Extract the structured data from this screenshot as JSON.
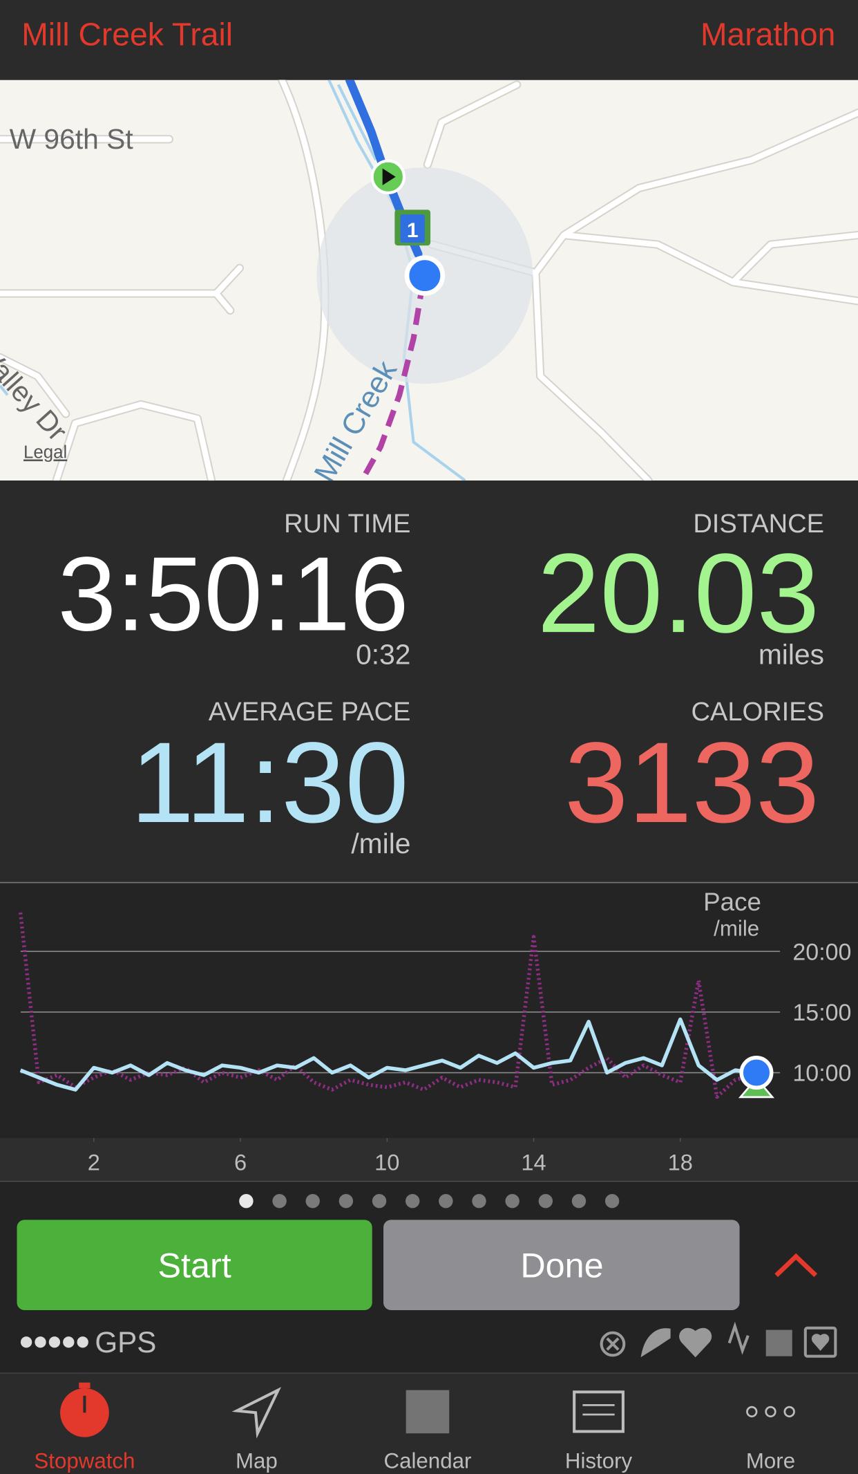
{
  "header": {
    "route": "Mill Creek Trail",
    "workout": "Marathon"
  },
  "map": {
    "labels": [
      "W 96th St",
      "Valley Dr",
      "Mill Creek"
    ],
    "legal": "Legal",
    "mile_marker": "1"
  },
  "stats": {
    "run_time": {
      "label": "RUN TIME",
      "value": "3:50:16",
      "sub": "0:32"
    },
    "distance": {
      "label": "DISTANCE",
      "value": 20.03,
      "unit": "miles"
    },
    "average_pace": {
      "label": "AVERAGE PACE",
      "value": "11:30",
      "unit": "/mile"
    },
    "calories": {
      "label": "CALORIES",
      "value": 3133
    }
  },
  "chart_data": {
    "type": "line",
    "title": "Pace",
    "y_unit": "/mile",
    "x": [
      0,
      0.5,
      1,
      1.5,
      2,
      2.5,
      3,
      3.5,
      4,
      4.5,
      5,
      5.5,
      6,
      6.5,
      7,
      7.5,
      8,
      8.5,
      9,
      9.5,
      10,
      10.5,
      11,
      11.5,
      12,
      12.5,
      13,
      13.5,
      14,
      14.5,
      15,
      15.5,
      16,
      16.5,
      17,
      17.5,
      18,
      18.5,
      19,
      19.5,
      20
    ],
    "series": [
      {
        "color": "#b5e3f6",
        "values": [
          10.2,
          9.6,
          9.0,
          8.6,
          10.4,
          10.0,
          10.6,
          9.8,
          10.8,
          10.2,
          9.8,
          10.6,
          10.4,
          10.0,
          10.6,
          10.4,
          11.2,
          10.0,
          10.6,
          9.6,
          10.4,
          10.2,
          10.6,
          11.0,
          10.4,
          11.4,
          10.8,
          11.6,
          10.4,
          10.8,
          11.0,
          14.2,
          10.0,
          10.8,
          11.2,
          10.6,
          14.4,
          10.6,
          9.4,
          10.2,
          10.0
        ]
      },
      {
        "color": "#9b2f8f",
        "values": [
          23.2,
          9.2,
          9.8,
          8.8,
          9.6,
          10.2,
          9.4,
          10.0,
          9.8,
          10.4,
          9.2,
          10.0,
          9.6,
          10.2,
          9.4,
          10.6,
          9.2,
          8.6,
          9.4,
          9.0,
          8.8,
          9.2,
          8.6,
          9.6,
          8.8,
          9.4,
          9.2,
          8.8,
          21.2,
          9.0,
          9.4,
          10.4,
          11.2,
          9.6,
          10.6,
          9.8,
          9.2,
          17.6,
          8.0,
          9.4,
          9.8
        ]
      }
    ],
    "xlim": [
      -0.56,
      20.72
    ],
    "ylim": [
      4.61,
      25.55
    ],
    "xticks": [
      2,
      6,
      10,
      14,
      18
    ],
    "yticks": [
      {
        "value": 10,
        "label": "10:00"
      },
      {
        "value": 15,
        "label": "15:00"
      },
      {
        "value": 20,
        "label": "20:00"
      }
    ],
    "grid": true
  },
  "pager": {
    "pages": 12,
    "current": 0
  },
  "controls": {
    "start": "Start",
    "done": "Done"
  },
  "status": {
    "gps": "GPS"
  },
  "tabs": {
    "items": [
      "Stopwatch",
      "Map",
      "Calendar",
      "History",
      "More"
    ],
    "active": 0
  }
}
